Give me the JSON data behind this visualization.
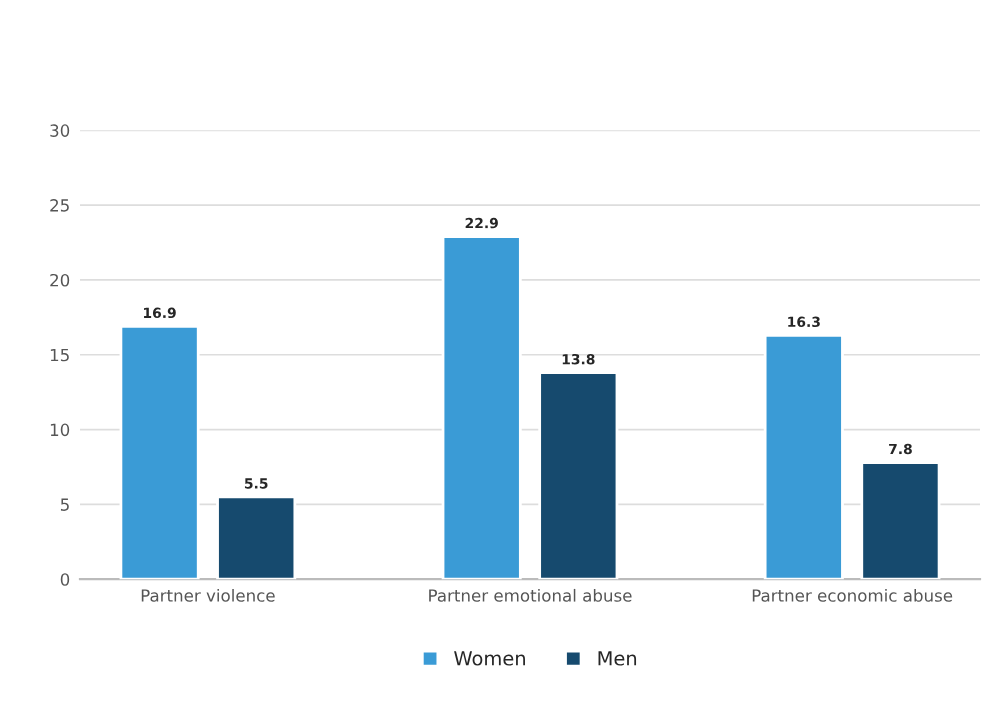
{
  "chart_data": {
    "type": "bar",
    "categories": [
      "Partner violence",
      "Partner emotional abuse",
      "Partner economic abuse"
    ],
    "series": [
      {
        "name": "Women",
        "color": "#3a9bd6",
        "values": [
          16.9,
          22.9,
          16.3
        ]
      },
      {
        "name": "Men",
        "color": "#164a6e",
        "values": [
          5.5,
          13.8,
          7.8
        ]
      }
    ],
    "ylim": [
      0,
      30
    ],
    "yticks": [
      0,
      5,
      10,
      15,
      20,
      25,
      30
    ],
    "grid": "y",
    "legend": "bottom",
    "data_labels": true
  }
}
